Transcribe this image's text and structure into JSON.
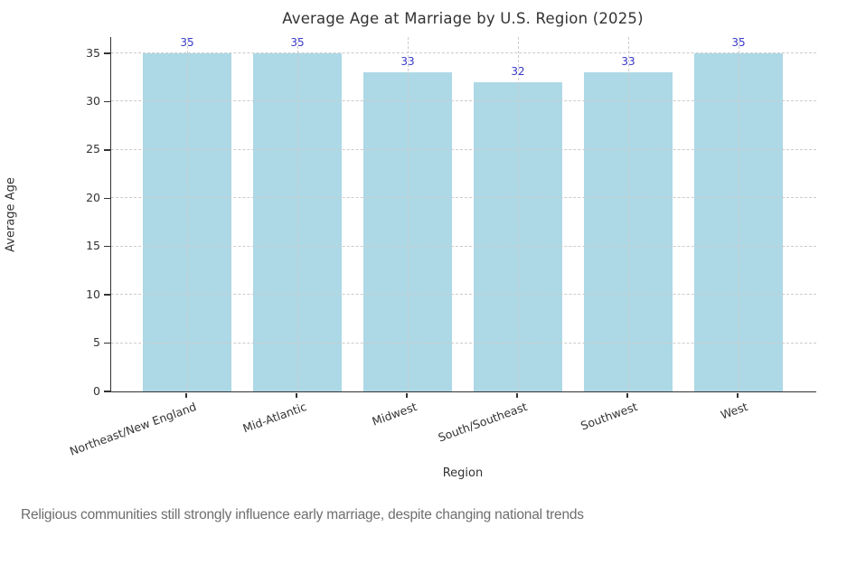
{
  "chart_data": {
    "type": "bar",
    "title": "Average Age at Marriage by U.S. Region (2025)",
    "xlabel": "Region",
    "ylabel": "Average Age",
    "categories": [
      "Northeast/New England",
      "Mid-Atlantic",
      "Midwest",
      "South/Southeast",
      "Southwest",
      "West"
    ],
    "values": [
      35,
      35,
      33,
      32,
      33,
      35
    ],
    "yticks": [
      0,
      5,
      10,
      15,
      20,
      25,
      30,
      35
    ],
    "ylim": [
      0,
      36.75
    ],
    "grid": true,
    "grid_style": "dashed",
    "legend": "none",
    "bar_color": "#ADD8E6",
    "value_label_color": "#3939c9",
    "axis_color": "#333333",
    "grid_color": "#cccccc"
  },
  "caption": "Religious communities still strongly influence early marriage, despite changing national trends"
}
